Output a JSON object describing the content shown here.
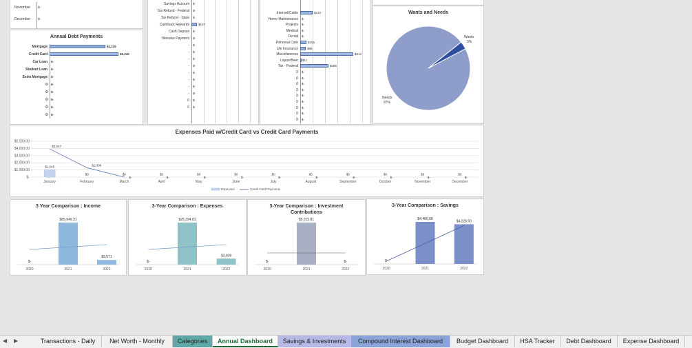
{
  "colors": {
    "bar_fill": "#9db6df",
    "bar_edge": "#4f6fa6",
    "pie_main": "#8e9dc9",
    "pie_slice": "#2f4f9e",
    "teal": "#5fa8a8",
    "active_tab_text": "#1e6b3a"
  },
  "top_left": {
    "months": [
      "November",
      "December"
    ],
    "values": [
      "$-",
      "$-"
    ]
  },
  "annual_debt": {
    "title": "Annual Debt Payments",
    "items": [
      {
        "label": "Mortgage",
        "value": "$4,239",
        "amount": 4239
      },
      {
        "label": "Credit Card",
        "value": "$5,245",
        "amount": 5245
      },
      {
        "label": "Car Loan",
        "value": "$-",
        "amount": 0
      },
      {
        "label": "Student Loan",
        "value": "$-",
        "amount": 0
      },
      {
        "label": "Extra Mortgage",
        "value": "$-",
        "amount": 0
      },
      {
        "label": "0",
        "value": "$-",
        "amount": 0
      },
      {
        "label": "0",
        "value": "$-",
        "amount": 0
      },
      {
        "label": "0",
        "value": "$-",
        "amount": 0
      },
      {
        "label": "0",
        "value": "$-",
        "amount": 0
      },
      {
        "label": "0",
        "value": "$-",
        "amount": 0
      }
    ]
  },
  "income_list": {
    "items": [
      {
        "label": "Savings Account",
        "value": "$-",
        "amount": 0
      },
      {
        "label": "Tax Refund - Federal",
        "value": "$-",
        "amount": 0
      },
      {
        "label": "Tax Refund - State",
        "value": "$-",
        "amount": 0
      },
      {
        "label": "Cashback Rewards",
        "value": "$167",
        "amount": 167
      },
      {
        "label": "Cash Deposit",
        "value": "$-",
        "amount": 0
      },
      {
        "label": "Stimulus Payment",
        "value": "$-",
        "amount": 0
      },
      {
        "label": "-",
        "value": "$-",
        "amount": 0
      },
      {
        "label": "-",
        "value": "$-",
        "amount": 0
      },
      {
        "label": "-",
        "value": "$-",
        "amount": 0
      },
      {
        "label": "-",
        "value": "$-",
        "amount": 0
      },
      {
        "label": "-",
        "value": "$-",
        "amount": 0
      },
      {
        "label": "-",
        "value": "$-",
        "amount": 0
      },
      {
        "label": "-",
        "value": "$-",
        "amount": 0
      },
      {
        "label": "-",
        "value": "$-",
        "amount": 0
      },
      {
        "label": "0",
        "value": "$-",
        "amount": 0
      },
      {
        "label": "0",
        "value": "$-",
        "amount": 0
      }
    ]
  },
  "expense_list": {
    "items": [
      {
        "label": "Internet/Cable",
        "value": "$213",
        "amount": 213
      },
      {
        "label": "Home Maintenance",
        "value": "$-",
        "amount": 0
      },
      {
        "label": "Projects",
        "value": "$-",
        "amount": 0
      },
      {
        "label": "Medical",
        "value": "$-",
        "amount": 0
      },
      {
        "label": "Dental",
        "value": "$-",
        "amount": 0
      },
      {
        "label": "Personal Care",
        "value": "$106",
        "amount": 106
      },
      {
        "label": "Life Insurance",
        "value": "$95",
        "amount": 95
      },
      {
        "label": "Miscellaneous",
        "value": "$912",
        "amount": 912
      },
      {
        "label": "Liquor/Beer",
        "value": "$11",
        "amount": 11
      },
      {
        "label": "Tax - Federal",
        "value": "$486",
        "amount": 486
      },
      {
        "label": "0",
        "value": "$-",
        "amount": 0
      },
      {
        "label": "0",
        "value": "$-",
        "amount": 0
      },
      {
        "label": "0",
        "value": "$-",
        "amount": 0
      },
      {
        "label": "0",
        "value": "$-",
        "amount": 0
      },
      {
        "label": "0",
        "value": "$-",
        "amount": 0
      },
      {
        "label": "0",
        "value": "$-",
        "amount": 0
      },
      {
        "label": "0",
        "value": "$-",
        "amount": 0
      },
      {
        "label": "0",
        "value": "$-",
        "amount": 0
      },
      {
        "label": "0",
        "value": "$-",
        "amount": 0
      }
    ]
  },
  "wants_needs": {
    "title": "Wants and Needs",
    "slices": [
      {
        "name": "Wants",
        "pct_label": "3%",
        "value": 3
      },
      {
        "name": "Needs",
        "pct_label": "97%",
        "value": 97
      }
    ]
  },
  "cc_chart": {
    "title": "Expenses Paid w/Credit Card vs Credit Card Payments",
    "y_ticks": [
      "$5,000.00",
      "$4,000.00",
      "$3,000.00",
      "$2,000.00",
      "$1,000.00",
      "$-"
    ],
    "months": [
      "January",
      "February",
      "March",
      "April",
      "May",
      "June",
      "July",
      "August",
      "September",
      "October",
      "November",
      "December"
    ],
    "expenses": [
      1046,
      0,
      0,
      0,
      0,
      0,
      0,
      0,
      0,
      0,
      0,
      0
    ],
    "expense_labels": [
      "$1,046",
      "$0",
      "$0",
      "$0",
      "$0",
      "$0",
      "$0",
      "$0",
      "$0",
      "$0",
      "$0",
      "$0"
    ],
    "payments": [
      3937,
      1308,
      0,
      0,
      0,
      0,
      0,
      0,
      0,
      0,
      0,
      0
    ],
    "payment_labels": [
      "$3,937",
      "$1,308",
      "$-",
      "$-",
      "$-",
      "$-",
      "$-",
      "$-",
      "$-",
      "$-",
      "$-",
      "$-"
    ],
    "legend": [
      "Expenses",
      "Credit Card Payments"
    ]
  },
  "comparisons": [
    {
      "title": "3 Year Comparison : Income",
      "years": [
        "2020",
        "2021",
        "2022"
      ],
      "values": [
        0,
        85949.31,
        9571
      ],
      "labels": [
        "$-",
        "$85,949.31",
        "$9,571"
      ],
      "color": "#8fb8dd",
      "line": true
    },
    {
      "title": "3-Year Comparison : Expenses",
      "years": [
        "2020",
        "2021",
        "2022"
      ],
      "values": [
        0,
        25294.81,
        3609
      ],
      "labels": [
        "$-",
        "$25,294.81",
        "$3,609"
      ],
      "color": "#8ec4c8",
      "line": true
    },
    {
      "title": "3-Year Comparison : Investment Contributions",
      "years": [
        "2020",
        "2021",
        "2022"
      ],
      "values": [
        0,
        5915.81,
        0
      ],
      "labels": [
        "$-",
        "$5,915.81",
        "$-"
      ],
      "color": "#a9b0c4",
      "line": true
    },
    {
      "title": "3-Year Comparison : Savings",
      "years": [
        "2020",
        "2021",
        "2022"
      ],
      "values": [
        0,
        4480.08,
        4228.5
      ],
      "labels": [
        "$-",
        "$4,480.08",
        "$4,228.50"
      ],
      "color": "#7b8fc8",
      "line": true
    }
  ],
  "tabs": [
    {
      "label": "Transactions - Daily",
      "style": ""
    },
    {
      "label": "Net Worth - Monthly",
      "style": ""
    },
    {
      "label": "Categories",
      "style": "teal"
    },
    {
      "label": "Annual Dashboard",
      "style": "active"
    },
    {
      "label": "Savings & Investments",
      "style": "lav"
    },
    {
      "label": "Compound Interest Dashboard",
      "style": "blue"
    },
    {
      "label": "Budget Dashboard",
      "style": ""
    },
    {
      "label": "HSA Tracker",
      "style": ""
    },
    {
      "label": "Debt Dashboard",
      "style": ""
    },
    {
      "label": "Expense Dashboard",
      "style": ""
    }
  ],
  "nav": {
    "prev": "◀",
    "next": "▶"
  }
}
